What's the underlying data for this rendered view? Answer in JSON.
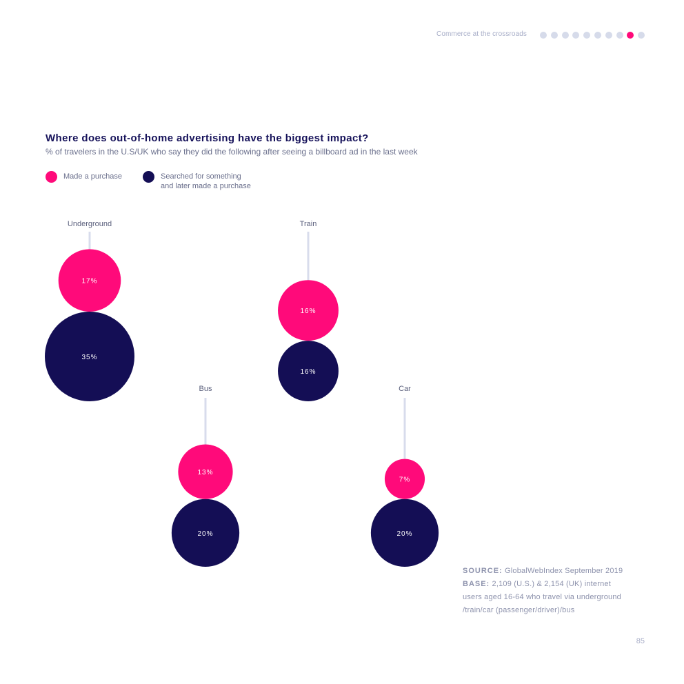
{
  "header": {
    "section": "Commerce at the crossroads",
    "progress_dots": 10,
    "active_dot_index": 8
  },
  "colors": {
    "purchase": "#ff0a7a",
    "searched": "#140e55",
    "dot_inactive": "#d6dbea",
    "connector": "#d8dcec"
  },
  "chart_data": {
    "type": "bubble",
    "title": "Where does out-of-home advertising have the biggest impact?",
    "subtitle": "% of travelers in the U.S/UK who say they did the following after seeing a billboard ad in the last week",
    "legend": [
      {
        "name": "Made a purchase",
        "color": "#ff0a7a"
      },
      {
        "name": "Searched for something\nand later made a purchase",
        "color": "#140e55"
      }
    ],
    "categories": [
      "Underground",
      "Train",
      "Bus",
      "Car"
    ],
    "series": [
      {
        "name": "Made a purchase",
        "values": [
          17,
          16,
          13,
          7
        ]
      },
      {
        "name": "Searched for something and later made a purchase",
        "values": [
          35,
          16,
          20,
          20
        ]
      }
    ],
    "unit": "%"
  },
  "footer": {
    "source_label": "SOURCE:",
    "source_text": "GlobalWebIndex September 2019",
    "base_label": "BASE:",
    "base_text": "2,109 (U.S.) & 2,154 (UK) internet",
    "base_line2": "users aged 16-64 who travel via underground",
    "base_line3": "/train/car (passenger/driver)/bus",
    "page_number": "85"
  }
}
